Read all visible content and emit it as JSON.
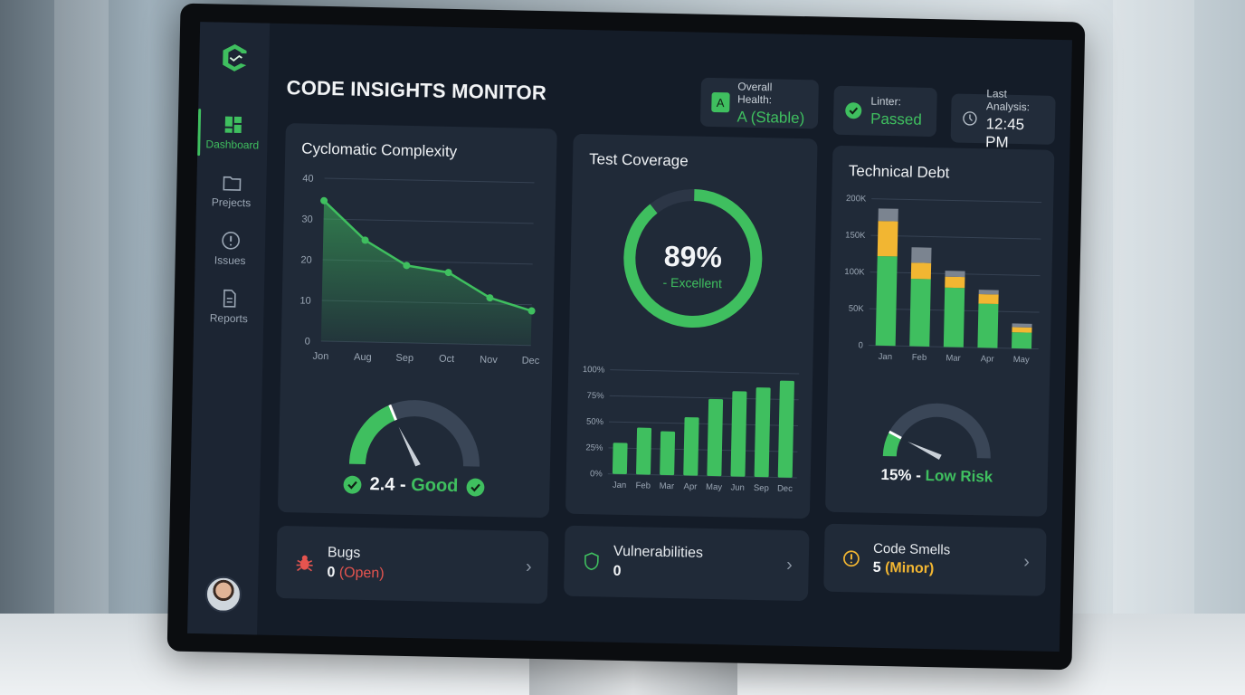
{
  "app": {
    "title": "CODE INSIGHTS MONITOR"
  },
  "sidebar": {
    "items": [
      {
        "label": "Dashboard",
        "icon": "dashboard-grid-icon",
        "active": true
      },
      {
        "label": "Prejects",
        "icon": "folder-icon"
      },
      {
        "label": "Issues",
        "icon": "alert-circle-icon"
      },
      {
        "label": "Reports",
        "icon": "document-icon"
      }
    ]
  },
  "status": {
    "health": {
      "label": "Overall Health:",
      "badge": "A",
      "value": "A (Stable)"
    },
    "linter": {
      "label": "Linter:",
      "value": "Passed"
    },
    "analysis": {
      "label": "Last Analysis:",
      "value": "12:45 PM"
    }
  },
  "complexity": {
    "title": "Cyclomatic Complexity",
    "gauge_value": "2.4",
    "gauge_sep": " - ",
    "gauge_status": "Good",
    "gauge_fraction": 0.37
  },
  "coverage": {
    "title": "Test Coverage",
    "percent": "89%",
    "status": "- Excellent",
    "fraction": 0.89
  },
  "debt": {
    "title": "Technical Debt",
    "gauge_value": "15%",
    "gauge_sep": " - ",
    "gauge_status": "Low Risk",
    "gauge_fraction": 0.15
  },
  "bottom": {
    "bugs": {
      "label": "Bugs",
      "count": "0",
      "note": "(Open)"
    },
    "vulns": {
      "label": "Vulnerabilities",
      "count": "0"
    },
    "smells": {
      "label": "Code Smells",
      "count": "5",
      "note": "(Minor)"
    }
  },
  "colors": {
    "green": "#3fbf5f",
    "yellow": "#f2b632",
    "gray": "#7b8490",
    "red": "#e5544f"
  },
  "chart_data": [
    {
      "type": "area",
      "title": "Cyclomatic Complexity",
      "categories": [
        "Jon",
        "Aug",
        "Sep",
        "Oct",
        "Nov",
        "Dec"
      ],
      "values": [
        34.5,
        25,
        19,
        17.5,
        11.5,
        8.5
      ],
      "ylim": [
        0,
        40
      ],
      "yticks": [
        "0",
        "10",
        "20",
        "30",
        "40"
      ],
      "grid": true
    },
    {
      "type": "bar",
      "categories": [
        "Jan",
        "Feb",
        "Mar",
        "Apr",
        "May",
        "Jun",
        "Sep",
        "Dec"
      ],
      "values": [
        30,
        45,
        42,
        56,
        74,
        82,
        86,
        93
      ],
      "ylim": [
        0,
        100
      ],
      "yticks": [
        "0%",
        "25%",
        "50%",
        "75%",
        "100%"
      ],
      "grid": true
    },
    {
      "type": "bar",
      "stacked": true,
      "title": "Technical Debt",
      "categories": [
        "Jan",
        "Feb",
        "Mar",
        "Apr",
        "May"
      ],
      "series": [
        {
          "values": [
            122000,
            92000,
            81000,
            60000,
            22000
          ],
          "color": "#3fbf5f"
        },
        {
          "values": [
            48000,
            22000,
            15000,
            13000,
            7000
          ],
          "color": "#f2b632"
        },
        {
          "values": [
            17000,
            21000,
            8000,
            6000,
            5000
          ],
          "color": "#7b8490"
        }
      ],
      "ylim": [
        0,
        200000
      ],
      "yticks": [
        "0",
        "50K",
        "100K",
        "150K",
        "200K"
      ],
      "grid": true
    }
  ]
}
